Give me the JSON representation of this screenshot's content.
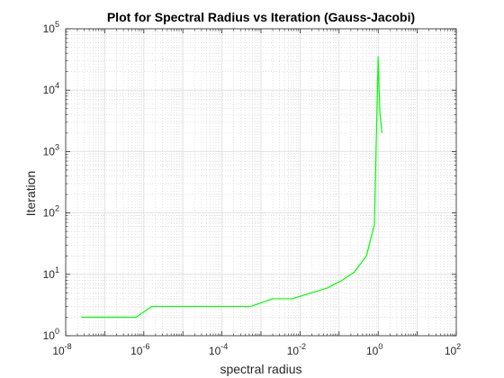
{
  "chart_data": {
    "type": "line",
    "title": "Plot for Spectral Radius vs Iteration (Gauss-Jacobi)",
    "xlabel": "spectral radius",
    "ylabel": "Iteration",
    "xscale": "log",
    "yscale": "log",
    "xlim": [
      1e-08,
      100
    ],
    "ylim": [
      1,
      100000
    ],
    "grid": true,
    "minor_grid": true,
    "x_ticks": [
      {
        "base": "10",
        "exp": "-8"
      },
      {
        "base": "10",
        "exp": "-6"
      },
      {
        "base": "10",
        "exp": "-4"
      },
      {
        "base": "10",
        "exp": "-2"
      },
      {
        "base": "10",
        "exp": "0"
      },
      {
        "base": "10",
        "exp": "2"
      }
    ],
    "y_ticks": [
      {
        "base": "10",
        "exp": "0"
      },
      {
        "base": "10",
        "exp": "1"
      },
      {
        "base": "10",
        "exp": "2"
      },
      {
        "base": "10",
        "exp": "3"
      },
      {
        "base": "10",
        "exp": "4"
      },
      {
        "base": "10",
        "exp": "5"
      }
    ],
    "series": [
      {
        "color": "#00ff00",
        "x": [
          2.5e-08,
          6.3e-07,
          1.6e-06,
          6.3e-05,
          0.00055,
          0.002,
          0.0063,
          0.02,
          0.05,
          0.12,
          0.25,
          0.5,
          0.8,
          1.0,
          1.1,
          1.25
        ],
        "y": [
          2,
          2,
          3,
          3,
          3,
          4,
          4,
          5,
          6,
          8,
          11,
          20,
          65,
          35000,
          4500,
          2000
        ]
      }
    ]
  }
}
